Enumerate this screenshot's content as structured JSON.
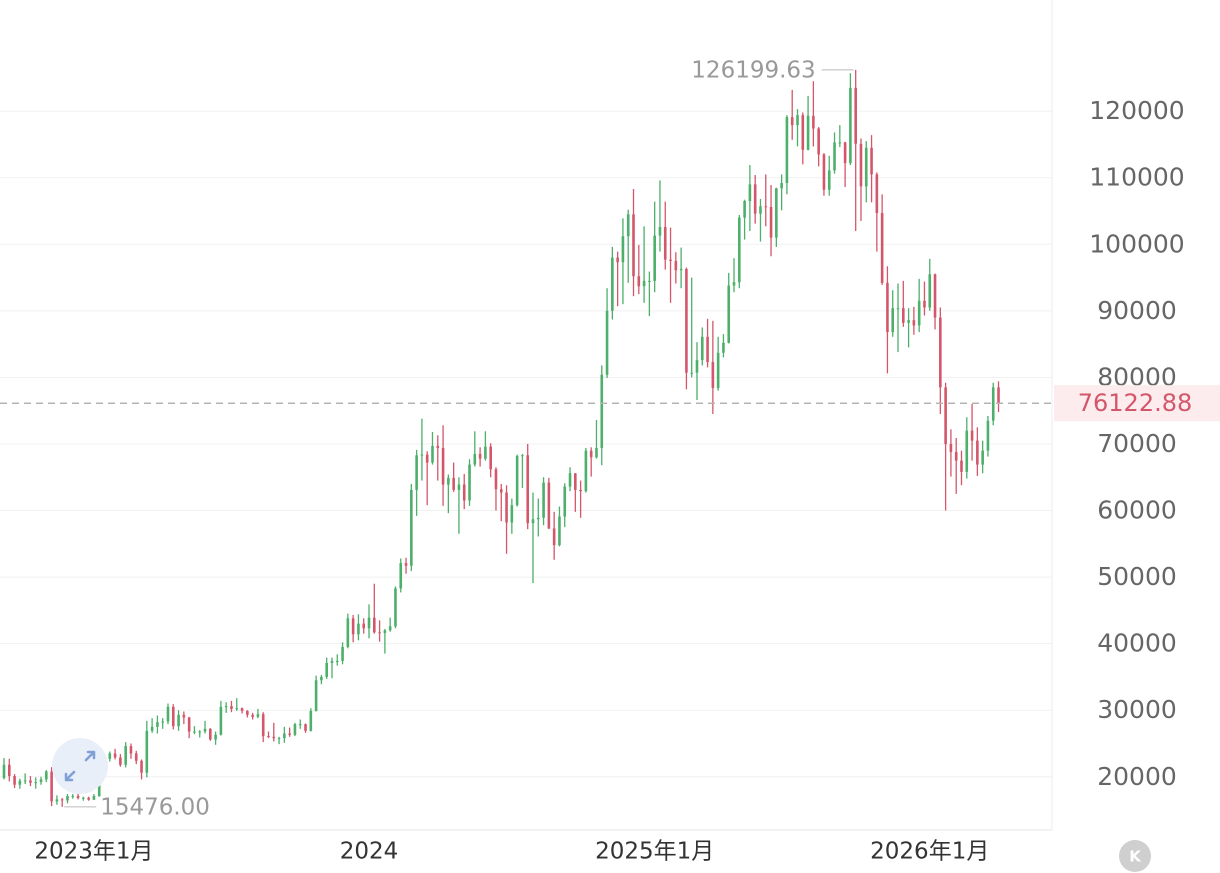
{
  "chart_data": {
    "type": "candlestick",
    "up_color": "#4caf6a",
    "down_color": "#d4566a",
    "ylim": [
      12000,
      136700
    ],
    "yticks": [
      20000,
      30000,
      40000,
      50000,
      60000,
      70000,
      80000,
      90000,
      100000,
      110000,
      120000
    ],
    "grid": true,
    "low_label": "15476.00",
    "button_label": "K",
    "categories": [
      null,
      null,
      null,
      null,
      null,
      null,
      null,
      null,
      null,
      null,
      null,
      null,
      null,
      null,
      null,
      null,
      null,
      "2023年1月",
      null,
      null,
      null,
      null,
      null,
      null,
      null,
      null,
      null,
      null,
      null,
      null,
      null,
      null,
      null,
      null,
      null,
      null,
      null,
      null,
      null,
      null,
      null,
      null,
      null,
      null,
      null,
      null,
      null,
      null,
      null,
      null,
      null,
      null,
      null,
      null,
      null,
      null,
      null,
      null,
      null,
      null,
      null,
      null,
      null,
      null,
      null,
      null,
      null,
      null,
      null,
      "2024",
      null,
      null,
      null,
      null,
      null,
      null,
      null,
      null,
      null,
      null,
      null,
      null,
      null,
      null,
      null,
      null,
      null,
      null,
      null,
      null,
      null,
      null,
      null,
      null,
      null,
      null,
      null,
      null,
      null,
      null,
      null,
      null,
      null,
      null,
      null,
      null,
      null,
      null,
      null,
      null,
      null,
      null,
      null,
      null,
      null,
      null,
      null,
      null,
      null,
      null,
      null,
      null,
      null,
      "2025年1月",
      null,
      null,
      null,
      null,
      null,
      null,
      null,
      null,
      null,
      null,
      null,
      null,
      null,
      null,
      null,
      null,
      null,
      null,
      null,
      null,
      null,
      null,
      null,
      null,
      null,
      null,
      null,
      null,
      null,
      null,
      null,
      null,
      null,
      null,
      null,
      null,
      null,
      null,
      null,
      null,
      null,
      null,
      null,
      null,
      null,
      null,
      null,
      null,
      null,
      null,
      null,
      "2026年1月",
      null,
      null,
      null,
      null,
      null,
      null,
      null,
      null,
      null,
      null,
      null,
      null,
      null,
      null,
      null
    ],
    "ohlc": [
      [
        19800,
        22800,
        19600,
        21800
      ],
      [
        21800,
        22700,
        19300,
        20100
      ],
      [
        20100,
        20400,
        18300,
        18800
      ],
      [
        18800,
        19700,
        18200,
        19400
      ],
      [
        19400,
        20500,
        18900,
        19450
      ],
      [
        19450,
        20100,
        18600,
        19100
      ],
      [
        19100,
        19900,
        18200,
        19200
      ],
      [
        19200,
        20000,
        18800,
        19600
      ],
      [
        19600,
        21000,
        19200,
        20800
      ],
      [
        20800,
        21450,
        15600,
        16300
      ],
      [
        16300,
        17200,
        15800,
        16600
      ],
      [
        16600,
        16800,
        15476,
        16450
      ],
      [
        16450,
        17400,
        16000,
        17100
      ],
      [
        17100,
        17400,
        16700,
        17100
      ],
      [
        17100,
        18400,
        16600,
        16800
      ],
      [
        16800,
        17000,
        16400,
        16850
      ],
      [
        16850,
        17000,
        16400,
        16550
      ],
      [
        16550,
        17400,
        16500,
        17100
      ],
      [
        17100,
        21200,
        17000,
        20900
      ],
      [
        20900,
        23300,
        20400,
        22700
      ],
      [
        22700,
        23800,
        22300,
        23500
      ],
      [
        23500,
        24200,
        22600,
        22900
      ],
      [
        22900,
        23400,
        21500,
        21800
      ],
      [
        21800,
        25200,
        21400,
        24600
      ],
      [
        24600,
        25000,
        22700,
        23500
      ],
      [
        23500,
        23900,
        21900,
        22400
      ],
      [
        22400,
        22600,
        19600,
        20600
      ],
      [
        20600,
        28400,
        19900,
        26900
      ],
      [
        26900,
        28800,
        26600,
        27500
      ],
      [
        27500,
        29200,
        26500,
        28200
      ],
      [
        28200,
        28800,
        27200,
        28300
      ],
      [
        28300,
        31000,
        27900,
        30500
      ],
      [
        30500,
        30900,
        27100,
        27600
      ],
      [
        27600,
        30000,
        26900,
        29300
      ],
      [
        29300,
        29800,
        27900,
        28900
      ],
      [
        28900,
        29000,
        25800,
        26800
      ],
      [
        26800,
        27600,
        26400,
        26800
      ],
      [
        26800,
        27000,
        25900,
        26800
      ],
      [
        26800,
        28400,
        26500,
        27200
      ],
      [
        27200,
        27300,
        25400,
        25600
      ],
      [
        25600,
        26800,
        24800,
        26300
      ],
      [
        26300,
        31400,
        26200,
        30500
      ],
      [
        30500,
        31200,
        29600,
        30600
      ],
      [
        30600,
        31400,
        29700,
        30200
      ],
      [
        30200,
        31800,
        29900,
        30300
      ],
      [
        30300,
        30400,
        29500,
        29900
      ],
      [
        29900,
        30000,
        28900,
        29300
      ],
      [
        29300,
        29600,
        28600,
        29000
      ],
      [
        29000,
        30200,
        28800,
        29400
      ],
      [
        29400,
        29700,
        25200,
        26100
      ],
      [
        26100,
        26800,
        25800,
        26000
      ],
      [
        26000,
        28100,
        25300,
        25800
      ],
      [
        25800,
        26000,
        24900,
        25800
      ],
      [
        25800,
        27500,
        25100,
        26500
      ],
      [
        26500,
        27400,
        26000,
        26300
      ],
      [
        26300,
        28100,
        26100,
        27900
      ],
      [
        27900,
        28600,
        27200,
        27900
      ],
      [
        27900,
        28000,
        26600,
        26900
      ],
      [
        26900,
        30300,
        26800,
        29900
      ],
      [
        29900,
        35200,
        29800,
        34500
      ],
      [
        34500,
        35300,
        33900,
        35000
      ],
      [
        35000,
        37900,
        34700,
        37100
      ],
      [
        37100,
        37900,
        34800,
        37400
      ],
      [
        37400,
        38400,
        36700,
        37400
      ],
      [
        37400,
        40200,
        36900,
        39500
      ],
      [
        39500,
        44500,
        39300,
        43800
      ],
      [
        43800,
        44300,
        40200,
        41400
      ],
      [
        41400,
        44400,
        40500,
        43000
      ],
      [
        43000,
        43800,
        41500,
        42300
      ],
      [
        42300,
        45900,
        40800,
        43900
      ],
      [
        43900,
        49000,
        41500,
        41700
      ],
      [
        41700,
        43500,
        40300,
        41600
      ],
      [
        41600,
        42200,
        38500,
        42000
      ],
      [
        42000,
        43900,
        41800,
        42600
      ],
      [
        42600,
        48600,
        42300,
        48300
      ],
      [
        48300,
        52800,
        47700,
        52100
      ],
      [
        52100,
        52900,
        50500,
        51700
      ],
      [
        51700,
        64000,
        50900,
        63100
      ],
      [
        63100,
        69100,
        59200,
        68300
      ],
      [
        68300,
        73800,
        64500,
        68400
      ],
      [
        68400,
        68900,
        60800,
        67200
      ],
      [
        67200,
        71800,
        66900,
        69700
      ],
      [
        69700,
        71300,
        64500,
        69400
      ],
      [
        69400,
        72800,
        60700,
        63900
      ],
      [
        63900,
        65400,
        59600,
        64900
      ],
      [
        64900,
        67200,
        62800,
        63100
      ],
      [
        63100,
        65000,
        56500,
        63900
      ],
      [
        63900,
        65500,
        60200,
        61500
      ],
      [
        61500,
        67700,
        60700,
        66900
      ],
      [
        66900,
        71900,
        66600,
        68500
      ],
      [
        68500,
        69500,
        66600,
        67800
      ],
      [
        67800,
        71900,
        67500,
        69600
      ],
      [
        69600,
        70100,
        65000,
        66200
      ],
      [
        66200,
        66500,
        60000,
        63200
      ],
      [
        63200,
        64000,
        58400,
        62700
      ],
      [
        62700,
        63800,
        53500,
        58200
      ],
      [
        58200,
        61800,
        56500,
        60800
      ],
      [
        60800,
        68400,
        60600,
        68200
      ],
      [
        68200,
        68500,
        63400,
        68300
      ],
      [
        68300,
        70000,
        57200,
        58100
      ],
      [
        58100,
        62700,
        49100,
        58700
      ],
      [
        58700,
        61800,
        56100,
        58900
      ],
      [
        58900,
        65000,
        57800,
        64200
      ],
      [
        64200,
        64900,
        57200,
        57300
      ],
      [
        57300,
        59800,
        52600,
        54800
      ],
      [
        54800,
        60600,
        54600,
        59100
      ],
      [
        59100,
        64100,
        57500,
        63600
      ],
      [
        63600,
        66500,
        62900,
        65600
      ],
      [
        65600,
        65600,
        59800,
        63100
      ],
      [
        63100,
        64500,
        58900,
        62900
      ],
      [
        62900,
        69400,
        62700,
        69000
      ],
      [
        69000,
        69500,
        65100,
        68000
      ],
      [
        68000,
        73600,
        67800,
        69400
      ],
      [
        69400,
        81800,
        66800,
        80400
      ],
      [
        80400,
        93400,
        79900,
        90000
      ],
      [
        90000,
        99600,
        88700,
        98000
      ],
      [
        98000,
        98900,
        90700,
        97300
      ],
      [
        97300,
        103900,
        91000,
        101200
      ],
      [
        101200,
        105200,
        94200,
        104500
      ],
      [
        104500,
        108300,
        92200,
        95200
      ],
      [
        95200,
        99900,
        92500,
        93700
      ],
      [
        93700,
        102700,
        91200,
        94500
      ],
      [
        94500,
        95900,
        89200,
        94500
      ],
      [
        94500,
        106400,
        92800,
        101300
      ],
      [
        101300,
        109600,
        98900,
        102600
      ],
      [
        102600,
        106400,
        96200,
        97700
      ],
      [
        97700,
        102500,
        91200,
        97500
      ],
      [
        97500,
        98800,
        94100,
        96100
      ],
      [
        96100,
        99500,
        93400,
        96300
      ],
      [
        96300,
        96500,
        78200,
        80700
      ],
      [
        80700,
        95000,
        80000,
        80700
      ],
      [
        80700,
        85300,
        76600,
        82600
      ],
      [
        82600,
        87500,
        81800,
        86100
      ],
      [
        86100,
        88800,
        81500,
        82300
      ],
      [
        82300,
        88500,
        74500,
        78400
      ],
      [
        78400,
        86100,
        78000,
        83700
      ],
      [
        83700,
        86500,
        83000,
        85200
      ],
      [
        85200,
        95700,
        85100,
        93800
      ],
      [
        93800,
        97900,
        92800,
        94300
      ],
      [
        94300,
        104400,
        93400,
        104000
      ],
      [
        104000,
        106700,
        100700,
        106500
      ],
      [
        106500,
        111900,
        102000,
        109000
      ],
      [
        109000,
        110400,
        103100,
        104600
      ],
      [
        104600,
        106800,
        100400,
        105700
      ],
      [
        105700,
        110500,
        102700,
        105600
      ],
      [
        105600,
        108900,
        98200,
        101000
      ],
      [
        101000,
        108500,
        99600,
        108400
      ],
      [
        108400,
        110500,
        105100,
        109200
      ],
      [
        109200,
        119400,
        107500,
        119100
      ],
      [
        119100,
        123200,
        115700,
        117900
      ],
      [
        117900,
        120300,
        114700,
        119400
      ],
      [
        119400,
        119800,
        112000,
        114200
      ],
      [
        114200,
        122300,
        114100,
        119300
      ],
      [
        119300,
        124500,
        114700,
        117400
      ],
      [
        117400,
        117600,
        111700,
        113500
      ],
      [
        113500,
        113700,
        107300,
        108200
      ],
      [
        108200,
        113300,
        107300,
        111100
      ],
      [
        111100,
        116800,
        110600,
        115300
      ],
      [
        115300,
        117900,
        114600,
        115300
      ],
      [
        115300,
        115400,
        108600,
        112200
      ],
      [
        112200,
        125700,
        111900,
        123500
      ],
      [
        123500,
        126199.63,
        102000,
        115100
      ],
      [
        115100,
        115900,
        103500,
        108700
      ],
      [
        108700,
        115500,
        106300,
        114500
      ],
      [
        114500,
        116400,
        106300,
        110500
      ],
      [
        110500,
        110800,
        98900,
        104700
      ],
      [
        104700,
        107500,
        93900,
        94200
      ],
      [
        94200,
        96700,
        80600,
        86800
      ],
      [
        86800,
        93100,
        86100,
        90400
      ],
      [
        90400,
        94100,
        83800,
        90400
      ],
      [
        90400,
        94500,
        87600,
        88200
      ],
      [
        88200,
        90400,
        84500,
        88600
      ],
      [
        88600,
        90600,
        86400,
        87800
      ],
      [
        87800,
        94800,
        86800,
        91500
      ],
      [
        91500,
        94400,
        89300,
        90500
      ],
      [
        90500,
        97800,
        90000,
        95500
      ],
      [
        95500,
        95600,
        87200,
        89000
      ],
      [
        89000,
        90500,
        74500,
        78500
      ],
      [
        78500,
        79200,
        60000,
        70000
      ],
      [
        70000,
        72200,
        65100,
        68800
      ],
      [
        68800,
        70900,
        62500,
        67500
      ],
      [
        67500,
        69000,
        63800,
        65800
      ],
      [
        65800,
        74000,
        64800,
        72000
      ],
      [
        72000,
        76000,
        67500,
        70500
      ],
      [
        70500,
        72500,
        65200,
        66900
      ],
      [
        66900,
        70500,
        65600,
        69000
      ],
      [
        69000,
        74200,
        68100,
        73500
      ],
      [
        73500,
        79200,
        72800,
        78500
      ],
      [
        78500,
        79400,
        74800,
        76122.88
      ]
    ]
  }
}
